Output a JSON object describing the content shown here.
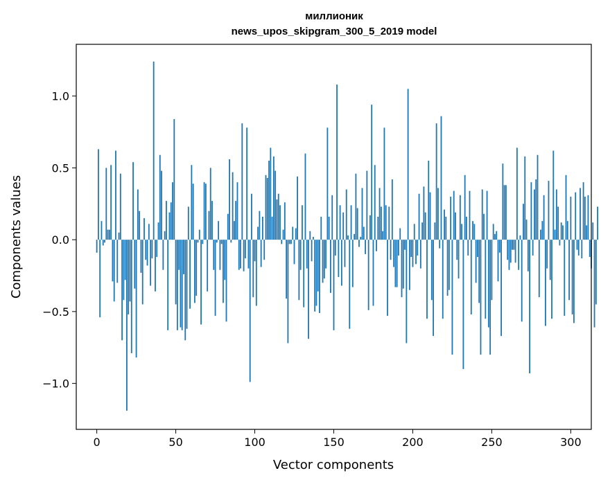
{
  "chart_data": {
    "type": "bar",
    "title": "миллионик",
    "subtitle": "news_upos_skipgram_300_5_2019 model",
    "xlabel": "Vector components",
    "ylabel": "Components values",
    "xlim": [
      -13,
      313
    ],
    "ylim": [
      -1.32,
      1.36
    ],
    "xticks": [
      0,
      50,
      100,
      150,
      200,
      250,
      300
    ],
    "xtick_labels": [
      "0",
      "50",
      "100",
      "150",
      "200",
      "250",
      "300"
    ],
    "yticks": [
      -1.0,
      -0.5,
      0.0,
      0.5,
      1.0
    ],
    "ytick_labels": [
      "−1.0",
      "−0.5",
      "0.0",
      "0.5",
      "1.0"
    ],
    "grid": false,
    "color": "#1f77b4",
    "x_start": 0,
    "values": [
      -0.09,
      0.63,
      -0.54,
      0.13,
      -0.04,
      -0.02,
      0.5,
      0.07,
      0.07,
      0.52,
      -0.29,
      -0.43,
      0.62,
      -0.3,
      0.05,
      0.46,
      -0.7,
      -0.42,
      -0.28,
      -1.19,
      -0.52,
      -0.43,
      -0.79,
      0.54,
      -0.34,
      -0.82,
      0.35,
      0.2,
      -0.23,
      -0.45,
      0.15,
      -0.14,
      -0.18,
      0.11,
      -0.32,
      -0.13,
      1.24,
      -0.36,
      -0.12,
      0.12,
      0.59,
      0.48,
      -0.21,
      0.06,
      0.27,
      -0.63,
      0.19,
      0.26,
      0.4,
      0.84,
      -0.45,
      -0.63,
      -0.21,
      -0.61,
      -0.63,
      -0.24,
      -0.7,
      -0.62,
      0.23,
      -0.48,
      0.52,
      0.39,
      -0.44,
      -0.39,
      -0.02,
      0.07,
      -0.59,
      -0.03,
      0.4,
      0.39,
      -0.36,
      0.2,
      0.5,
      0.27,
      -0.21,
      -0.53,
      -0.02,
      0.13,
      -0.21,
      -0.03,
      -0.44,
      -0.28,
      -0.57,
      0.18,
      0.56,
      -0.02,
      0.47,
      0.13,
      0.27,
      0.4,
      -0.21,
      -0.2,
      0.81,
      -0.22,
      -0.13,
      0.78,
      -0.2,
      -0.99,
      0.32,
      -0.4,
      -0.15,
      -0.46,
      0.09,
      0.2,
      -0.19,
      0.16,
      -0.14,
      0.45,
      0.43,
      0.55,
      0.64,
      0.16,
      0.58,
      0.48,
      0.28,
      0.32,
      0.24,
      -0.03,
      0.07,
      0.26,
      -0.41,
      -0.72,
      -0.03,
      -0.03,
      0.09,
      -0.17,
      0.08,
      0.44,
      -0.42,
      -0.21,
      0.24,
      -0.47,
      0.6,
      -0.2,
      -0.69,
      0.06,
      -0.15,
      0.02,
      -0.5,
      -0.46,
      -0.36,
      -0.51,
      0.16,
      -0.3,
      -0.27,
      -0.2,
      0.78,
      0.16,
      -0.37,
      0.31,
      -0.63,
      -0.11,
      1.08,
      -0.26,
      0.24,
      -0.32,
      0.19,
      -0.19,
      0.35,
      0.03,
      -0.62,
      0.24,
      -0.33,
      0.04,
      0.46,
      0.22,
      -0.05,
      0.02,
      0.36,
      0.09,
      -0.1,
      0.48,
      -0.49,
      0.17,
      0.94,
      -0.46,
      0.52,
      -0.08,
      0.16,
      0.36,
      0.23,
      0.06,
      0.78,
      0.24,
      -0.53,
      0.23,
      -0.14,
      0.42,
      -0.19,
      -0.33,
      -0.33,
      -0.11,
      0.08,
      -0.4,
      -0.34,
      -0.07,
      -0.72,
      1.05,
      -0.35,
      -0.12,
      -0.19,
      0.11,
      -0.17,
      -0.11,
      0.32,
      -0.2,
      0.12,
      0.37,
      0.19,
      -0.55,
      0.55,
      0.33,
      -0.42,
      -0.67,
      0.12,
      0.81,
      0.36,
      -0.06,
      0.86,
      -0.55,
      0.21,
      0.16,
      -0.39,
      -0.35,
      0.3,
      -0.8,
      0.34,
      0.19,
      -0.14,
      -0.27,
      0.31,
      0.11,
      -0.9,
      0.45,
      0.16,
      -0.11,
      0.34,
      -0.52,
      0.13,
      0.11,
      -0.3,
      -0.12,
      -0.44,
      -0.8,
      0.35,
      0.18,
      -0.55,
      0.34,
      -0.61,
      -0.8,
      -0.42,
      0.11,
      0.04,
      0.06,
      -0.29,
      -0.09,
      -0.67,
      0.53,
      0.38,
      0.38,
      -0.14,
      -0.21,
      -0.16,
      -0.07,
      -0.07,
      -0.16,
      0.64,
      -0.21,
      0.03,
      -0.57,
      0.25,
      0.58,
      0.14,
      -0.22,
      -0.93,
      0.4,
      -0.11,
      0.35,
      0.42,
      0.59,
      -0.4,
      0.07,
      0.13,
      0.31,
      -0.6,
      -0.2,
      0.41,
      -0.28,
      -0.55,
      0.62,
      0.07,
      0.35,
      0.23,
      -0.04,
      0.12,
      0.1,
      -0.53,
      0.45,
      0.13,
      -0.42,
      0.3,
      -0.52,
      -0.58,
      0.33,
      -0.07,
      -0.11,
      0.36,
      -0.13,
      0.4,
      0.3,
      0.1,
      0.31,
      -0.12,
      -0.2,
      0.12,
      -0.61,
      -0.45,
      0.23
    ]
  }
}
